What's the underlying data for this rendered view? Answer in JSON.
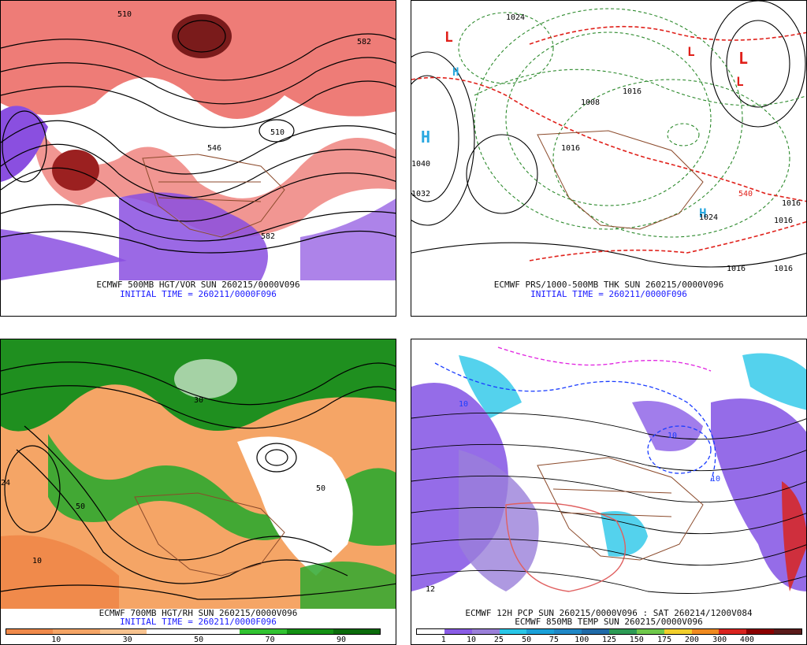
{
  "panels": [
    {
      "id": "p1",
      "caption1": "ECMWF 500MB HGT/VOR SUN 260215/0000V096",
      "caption2": "INITIAL TIME = 260211/0000F096"
    },
    {
      "id": "p2",
      "caption1": "ECMWF PRS/1000-500MB THK SUN 260215/0000V096",
      "caption2": "INITIAL TIME = 260211/0000F096"
    },
    {
      "id": "p3",
      "caption1": "ECMWF 700MB HGT/RH SUN 260215/0000V096",
      "caption2": "INITIAL TIME = 260211/0000F096"
    },
    {
      "id": "p4",
      "caption1": "ECMWF 12H PCP SUN 260215/0000V096 : SAT 260214/1200V084",
      "caption2": "ECMWF 850MB TEMP SUN 260215/0000V096"
    }
  ],
  "rh_scale": {
    "ticks": [
      "10",
      "30",
      "50",
      "70",
      "90"
    ],
    "colors": [
      "#f08a4b",
      "#f5a566",
      "#f8c38f",
      "#ffffff",
      "#ffffff",
      "#31c331",
      "#139013",
      "#0b6b0b"
    ]
  },
  "pcp_scale": {
    "ticks": [
      "1",
      "10",
      "25",
      "50",
      "75",
      "100",
      "125",
      "150",
      "175",
      "200",
      "300",
      "400"
    ],
    "colors": [
      "#ffffff",
      "#8a5ce6",
      "#9a7fd9",
      "#29c7e8",
      "#1aa1d9",
      "#1f88c7",
      "#1f6aa8",
      "#2d9b55",
      "#6fc94b",
      "#f2cf2c",
      "#f08a1f",
      "#d9241f",
      "#8b0000",
      "#5a1a1a"
    ]
  },
  "labels": {
    "p1": [
      "510",
      "582",
      "546",
      "510",
      "582"
    ],
    "p2": [
      "1024",
      "1008",
      "1016",
      "1040",
      "1032",
      "1016",
      "1016",
      "1016",
      "540",
      "1024",
      "1016",
      "1016"
    ],
    "p3": [
      "10",
      "30",
      "50",
      "50",
      "24"
    ],
    "p4": [
      "10",
      "10",
      "10",
      "12"
    ]
  }
}
